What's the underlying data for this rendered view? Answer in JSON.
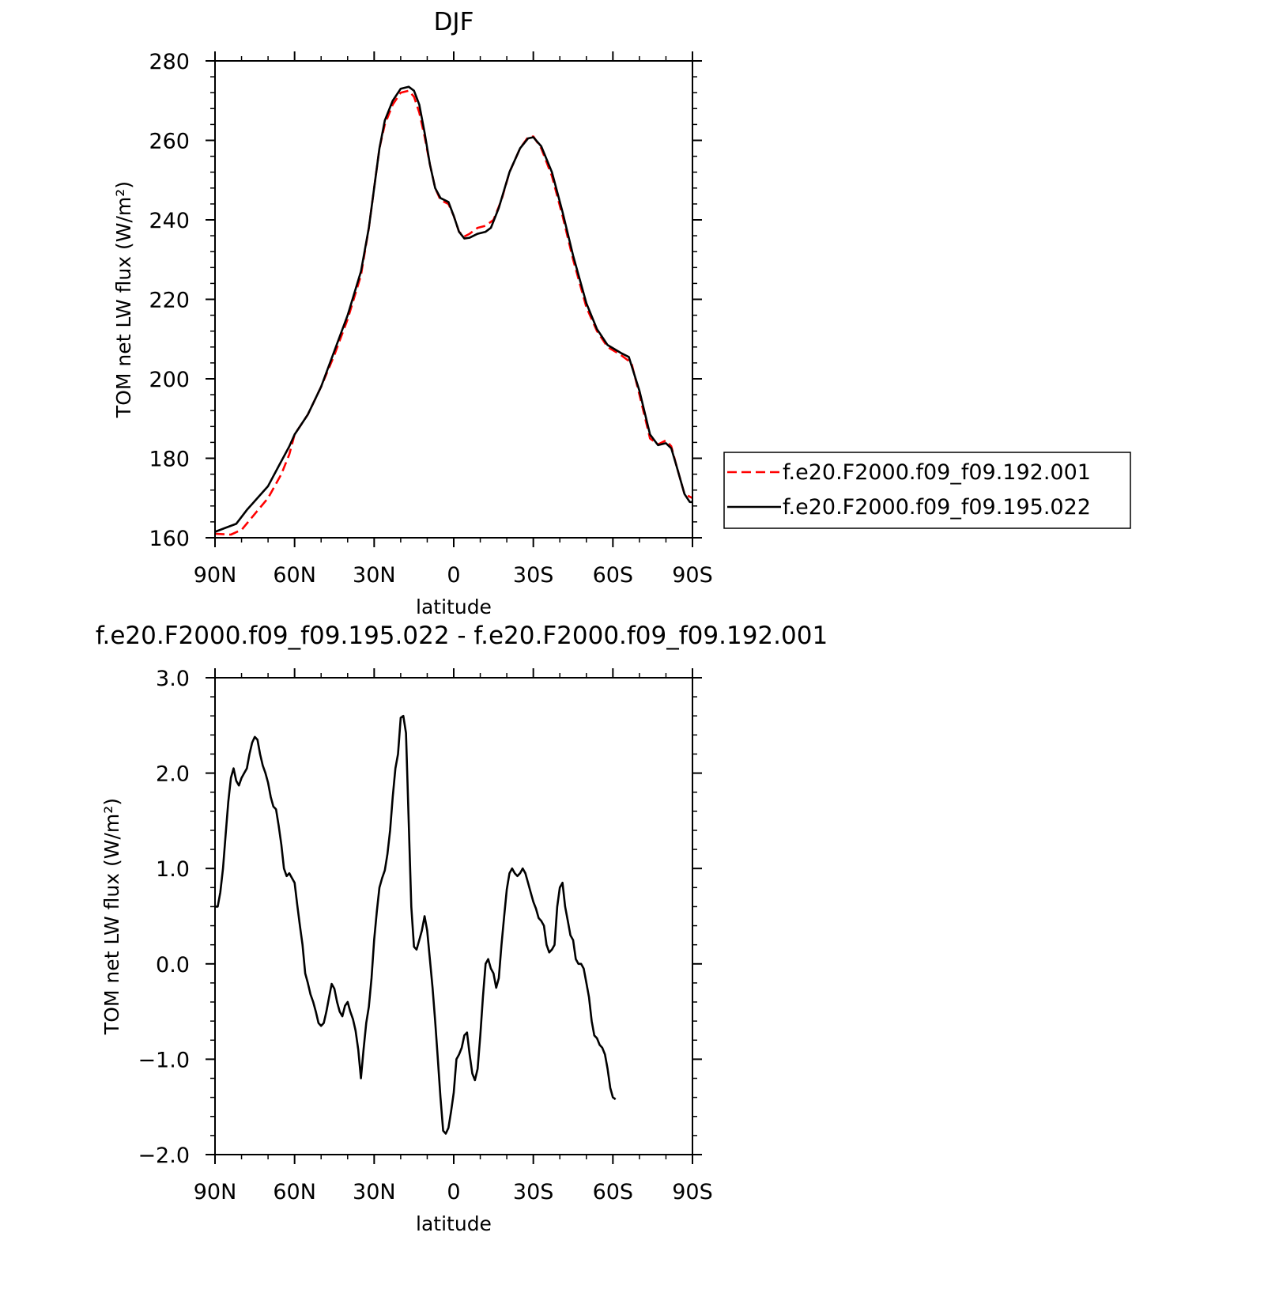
{
  "chart_data": [
    {
      "type": "line",
      "title": "DJF",
      "xlabel": "latitude",
      "ylabel": "TOM net LW flux (W/m²)",
      "xlim": [
        90,
        -90
      ],
      "ylim": [
        160,
        280
      ],
      "x_ticks": [
        90,
        60,
        30,
        0,
        -30,
        -60,
        -90
      ],
      "x_tick_labels": [
        "90N",
        "60N",
        "30N",
        "0",
        "30S",
        "60S",
        "90S"
      ],
      "y_ticks": [
        160,
        180,
        200,
        220,
        240,
        260,
        280
      ],
      "y_tick_labels": [
        "160",
        "180",
        "200",
        "220",
        "240",
        "260",
        "280"
      ],
      "grid": false,
      "legend_position": "right",
      "series": [
        {
          "name": "f.e20.F2000.f09_f09.192.001",
          "color": "#ff0000",
          "style": "dashed",
          "points": [
            [
              90,
              161
            ],
            [
              84,
              160.8
            ],
            [
              80,
              162
            ],
            [
              75,
              166
            ],
            [
              70,
              170
            ],
            [
              65,
              176
            ],
            [
              62,
              181
            ],
            [
              60,
              186
            ],
            [
              55,
              191
            ],
            [
              50,
              198
            ],
            [
              45,
              206
            ],
            [
              40,
              215
            ],
            [
              35,
              226
            ],
            [
              32,
              238
            ],
            [
              30,
              248
            ],
            [
              28,
              258
            ],
            [
              26,
              264
            ],
            [
              23,
              269
            ],
            [
              20,
              272
            ],
            [
              17,
              272.5
            ],
            [
              15,
              271
            ],
            [
              13,
              267
            ],
            [
              11,
              261
            ],
            [
              9,
              254
            ],
            [
              7,
              248
            ],
            [
              5,
              245
            ],
            [
              2,
              244
            ],
            [
              0,
              241
            ],
            [
              -2,
              237
            ],
            [
              -4,
              235.8
            ],
            [
              -6,
              236.5
            ],
            [
              -9,
              238
            ],
            [
              -12,
              238.5
            ],
            [
              -15,
              240
            ],
            [
              -18,
              245
            ],
            [
              -21,
              252
            ],
            [
              -25,
              258
            ],
            [
              -28,
              260.8
            ],
            [
              -30,
              261
            ],
            [
              -33,
              258
            ],
            [
              -37,
              251
            ],
            [
              -41,
              241
            ],
            [
              -45,
              230
            ],
            [
              -50,
              218
            ],
            [
              -54,
              212
            ],
            [
              -58,
              208
            ],
            [
              -63,
              206
            ],
            [
              -67,
              204
            ],
            [
              -70,
              196
            ],
            [
              -74,
              185
            ],
            [
              -77,
              183.5
            ],
            [
              -80,
              184.5
            ],
            [
              -82,
              183
            ],
            [
              -84,
              178
            ],
            [
              -87,
              171
            ],
            [
              -90,
              170
            ]
          ]
        },
        {
          "name": "f.e20.F2000.f09_f09.195.022",
          "color": "#000000",
          "style": "solid",
          "points": [
            [
              90,
              161.5
            ],
            [
              86,
              162.5
            ],
            [
              82,
              163.5
            ],
            [
              78,
              167
            ],
            [
              74,
              170
            ],
            [
              70,
              173
            ],
            [
              66,
              178
            ],
            [
              62,
              183
            ],
            [
              60,
              186
            ],
            [
              55,
              191
            ],
            [
              50,
              198
            ],
            [
              45,
              207
            ],
            [
              40,
              216
            ],
            [
              35,
              227
            ],
            [
              32,
              238
            ],
            [
              30,
              248
            ],
            [
              28,
              258
            ],
            [
              26,
              265
            ],
            [
              23,
              270
            ],
            [
              20,
              273
            ],
            [
              17,
              273.5
            ],
            [
              15,
              272.5
            ],
            [
              13,
              269
            ],
            [
              11,
              262
            ],
            [
              9,
              254
            ],
            [
              7,
              248
            ],
            [
              5,
              245.5
            ],
            [
              2,
              244.5
            ],
            [
              0,
              241
            ],
            [
              -2,
              237
            ],
            [
              -4,
              235.3
            ],
            [
              -6,
              235.5
            ],
            [
              -9,
              236.5
            ],
            [
              -12,
              237
            ],
            [
              -14,
              238
            ],
            [
              -17,
              243
            ],
            [
              -21,
              252
            ],
            [
              -25,
              258
            ],
            [
              -28,
              260.5
            ],
            [
              -30,
              260.8
            ],
            [
              -33,
              258.5
            ],
            [
              -37,
              252
            ],
            [
              -41,
              242
            ],
            [
              -45,
              231
            ],
            [
              -50,
              219
            ],
            [
              -54,
              212.5
            ],
            [
              -58,
              208.5
            ],
            [
              -63,
              206.5
            ],
            [
              -66,
              205.5
            ],
            [
              -70,
              197
            ],
            [
              -74,
              186
            ],
            [
              -77,
              183.3
            ],
            [
              -80,
              183.8
            ],
            [
              -82,
              182.5
            ],
            [
              -84,
              178
            ],
            [
              -87,
              171
            ],
            [
              -89,
              169
            ],
            [
              -90,
              169
            ]
          ]
        }
      ]
    },
    {
      "type": "line",
      "title": "f.e20.F2000.f09_f09.195.022 - f.e20.F2000.f09_f09.192.001",
      "xlabel": "latitude",
      "ylabel": "TOM net LW flux (W/m²)",
      "xlim": [
        90,
        -90
      ],
      "ylim": [
        -2.0,
        3.0
      ],
      "x_ticks": [
        90,
        60,
        30,
        0,
        -30,
        -60,
        -90
      ],
      "x_tick_labels": [
        "90N",
        "60N",
        "30N",
        "0",
        "30S",
        "60S",
        "90S"
      ],
      "y_ticks": [
        -2,
        -1,
        0,
        1,
        2,
        3
      ],
      "y_tick_labels": [
        "−2.0",
        "−1.0",
        "0.0",
        "1.0",
        "2.0",
        "3.0"
      ],
      "grid": false,
      "series": [
        {
          "color": "#000000",
          "style": "solid",
          "points": [
            [
              90,
              0.6
            ],
            [
              89,
              0.6
            ],
            [
              88,
              0.75
            ],
            [
              87,
              1.0
            ],
            [
              86,
              1.35
            ],
            [
              85,
              1.7
            ],
            [
              84,
              1.95
            ],
            [
              83,
              2.05
            ],
            [
              82,
              1.92
            ],
            [
              81,
              1.87
            ],
            [
              80,
              1.95
            ],
            [
              79,
              2.0
            ],
            [
              78,
              2.05
            ],
            [
              77,
              2.2
            ],
            [
              76,
              2.32
            ],
            [
              75,
              2.38
            ],
            [
              74,
              2.35
            ],
            [
              73,
              2.2
            ],
            [
              72,
              2.08
            ],
            [
              71,
              2.0
            ],
            [
              70,
              1.9
            ],
            [
              69,
              1.75
            ],
            [
              68,
              1.65
            ],
            [
              67,
              1.62
            ],
            [
              66,
              1.45
            ],
            [
              65,
              1.25
            ],
            [
              64,
              1.0
            ],
            [
              63,
              0.92
            ],
            [
              62,
              0.95
            ],
            [
              61,
              0.9
            ],
            [
              60,
              0.85
            ],
            [
              59,
              0.62
            ],
            [
              58,
              0.4
            ],
            [
              57,
              0.2
            ],
            [
              56,
              -0.1
            ],
            [
              55,
              -0.2
            ],
            [
              54,
              -0.32
            ],
            [
              53,
              -0.4
            ],
            [
              52,
              -0.5
            ],
            [
              51,
              -0.62
            ],
            [
              50,
              -0.65
            ],
            [
              49,
              -0.62
            ],
            [
              48,
              -0.5
            ],
            [
              47,
              -0.35
            ],
            [
              46,
              -0.21
            ],
            [
              45,
              -0.26
            ],
            [
              44,
              -0.4
            ],
            [
              43,
              -0.5
            ],
            [
              42,
              -0.55
            ],
            [
              41,
              -0.44
            ],
            [
              40,
              -0.4
            ],
            [
              39,
              -0.5
            ],
            [
              38,
              -0.58
            ],
            [
              37,
              -0.7
            ],
            [
              36,
              -0.9
            ],
            [
              35,
              -1.2
            ],
            [
              34,
              -0.9
            ],
            [
              33,
              -0.62
            ],
            [
              32,
              -0.45
            ],
            [
              31,
              -0.15
            ],
            [
              30,
              0.25
            ],
            [
              29,
              0.55
            ],
            [
              28,
              0.8
            ],
            [
              27,
              0.9
            ],
            [
              26,
              0.98
            ],
            [
              25,
              1.15
            ],
            [
              24,
              1.4
            ],
            [
              23,
              1.75
            ],
            [
              22,
              2.05
            ],
            [
              21,
              2.2
            ],
            [
              20,
              2.58
            ],
            [
              19,
              2.6
            ],
            [
              18,
              2.42
            ],
            [
              17,
              1.5
            ],
            [
              16,
              0.6
            ],
            [
              15,
              0.18
            ],
            [
              14,
              0.15
            ],
            [
              13,
              0.25
            ],
            [
              12,
              0.35
            ],
            [
              11,
              0.5
            ],
            [
              10,
              0.35
            ],
            [
              9,
              0.05
            ],
            [
              8,
              -0.25
            ],
            [
              7,
              -0.6
            ],
            [
              6,
              -1.0
            ],
            [
              5,
              -1.4
            ],
            [
              4,
              -1.75
            ],
            [
              3,
              -1.78
            ],
            [
              2,
              -1.72
            ],
            [
              1,
              -1.55
            ],
            [
              0,
              -1.35
            ],
            [
              -1,
              -1.0
            ],
            [
              -2,
              -0.95
            ],
            [
              -3,
              -0.88
            ],
            [
              -4,
              -0.75
            ],
            [
              -5,
              -0.72
            ],
            [
              -6,
              -0.95
            ],
            [
              -7,
              -1.15
            ],
            [
              -8,
              -1.22
            ],
            [
              -9,
              -1.1
            ],
            [
              -10,
              -0.75
            ],
            [
              -11,
              -0.35
            ],
            [
              -12,
              0.0
            ],
            [
              -13,
              0.05
            ],
            [
              -14,
              -0.05
            ],
            [
              -15,
              -0.1
            ],
            [
              -16,
              -0.25
            ],
            [
              -17,
              -0.15
            ],
            [
              -18,
              0.2
            ],
            [
              -19,
              0.5
            ],
            [
              -20,
              0.78
            ],
            [
              -21,
              0.95
            ],
            [
              -22,
              1.0
            ],
            [
              -23,
              0.95
            ],
            [
              -24,
              0.92
            ],
            [
              -25,
              0.95
            ],
            [
              -26,
              1.0
            ],
            [
              -27,
              0.95
            ],
            [
              -28,
              0.85
            ],
            [
              -29,
              0.75
            ],
            [
              -30,
              0.65
            ],
            [
              -31,
              0.58
            ],
            [
              -32,
              0.48
            ],
            [
              -33,
              0.45
            ],
            [
              -34,
              0.4
            ],
            [
              -35,
              0.2
            ],
            [
              -36,
              0.12
            ],
            [
              -37,
              0.15
            ],
            [
              -38,
              0.2
            ],
            [
              -39,
              0.6
            ],
            [
              -40,
              0.8
            ],
            [
              -41,
              0.85
            ],
            [
              -42,
              0.6
            ],
            [
              -43,
              0.45
            ],
            [
              -44,
              0.3
            ],
            [
              -45,
              0.25
            ],
            [
              -46,
              0.05
            ],
            [
              -47,
              0.0
            ],
            [
              -48,
              0.0
            ],
            [
              -49,
              -0.05
            ],
            [
              -50,
              -0.2
            ],
            [
              -51,
              -0.35
            ],
            [
              -52,
              -0.6
            ],
            [
              -53,
              -0.75
            ],
            [
              -54,
              -0.78
            ],
            [
              -55,
              -0.85
            ],
            [
              -56,
              -0.88
            ],
            [
              -57,
              -0.95
            ],
            [
              -58,
              -1.1
            ],
            [
              -59,
              -1.3
            ],
            [
              -60,
              -1.4
            ],
            [
              -61,
              -1.42
            ]
          ]
        }
      ]
    }
  ]
}
